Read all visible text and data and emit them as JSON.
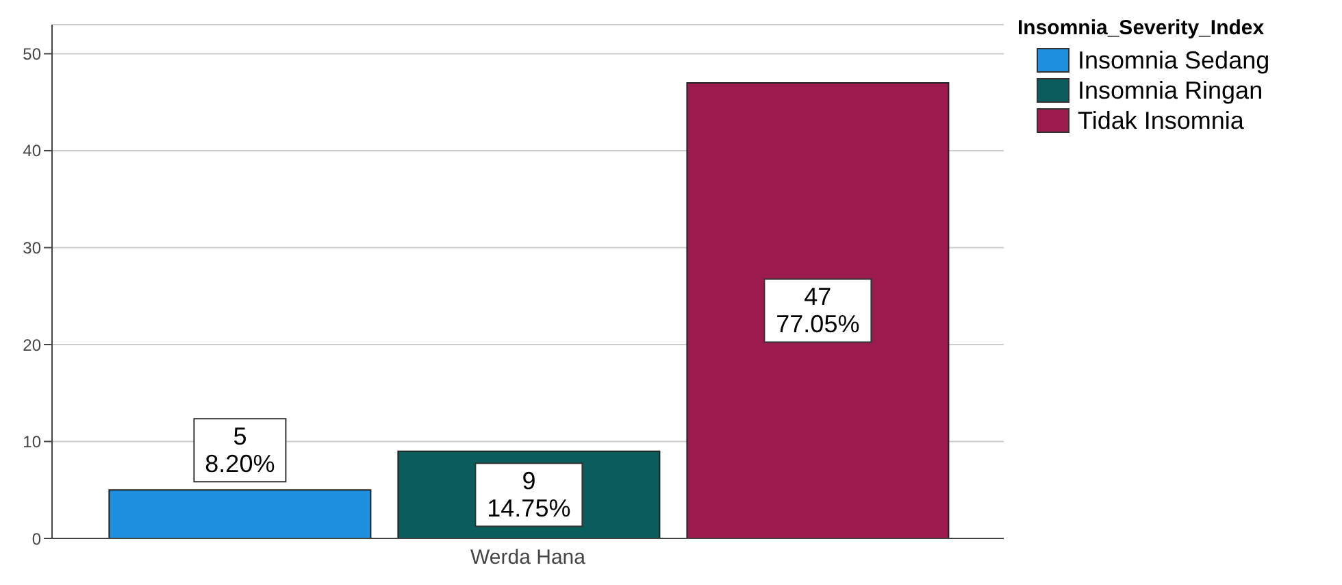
{
  "chart_data": {
    "type": "bar",
    "categories": [
      "Werda Hana"
    ],
    "series": [
      {
        "name": "Insomnia Sedang",
        "color": "#1f8fe0",
        "values": [
          5
        ],
        "value_labels": [
          "5\n8.20%"
        ]
      },
      {
        "name": "Insomnia Ringan",
        "color": "#0b5c5c",
        "values": [
          9
        ],
        "value_labels": [
          "9\n14.75%"
        ]
      },
      {
        "name": "Tidak Insomnia",
        "color": "#9b1b4f",
        "values": [
          47
        ],
        "value_labels": [
          "47\n77.05%"
        ]
      }
    ],
    "ylim": [
      0,
      53
    ],
    "yticks": [
      0,
      10,
      20,
      30,
      40,
      50
    ],
    "grid": "y",
    "legend": "top right",
    "legend_title": "Insomnia_Severity_Index"
  }
}
